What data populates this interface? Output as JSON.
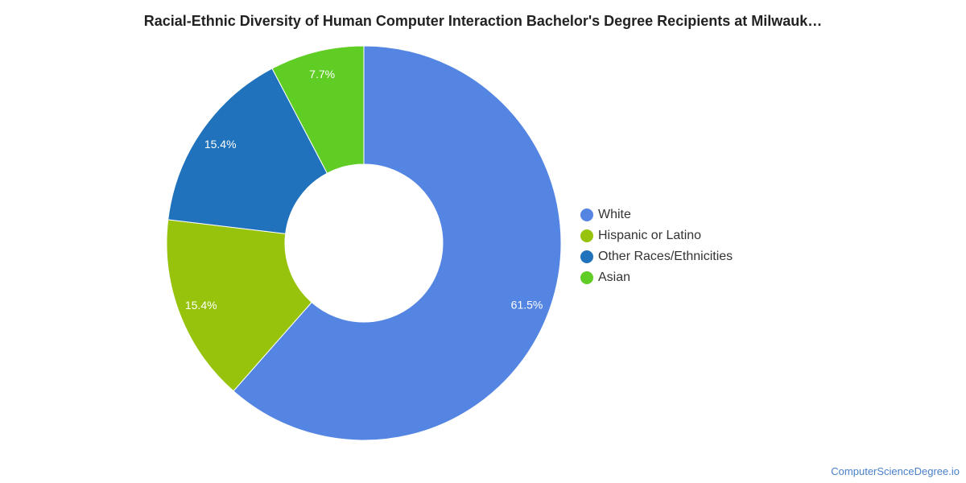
{
  "chart_data": {
    "type": "pie",
    "title": "Racial-Ethnic Diversity of Human Computer Interaction Bachelor's Degree Recipients at Milwauk…",
    "donut": true,
    "legend_position": "right",
    "slices": [
      {
        "name": "White",
        "value": 61.5,
        "label": "61.5%",
        "color": "#5485e2"
      },
      {
        "name": "Hispanic or Latino",
        "value": 15.4,
        "label": "15.4%",
        "color": "#97c30d"
      },
      {
        "name": "Other Races/Ethnicities",
        "value": 15.4,
        "label": "15.4%",
        "color": "#1f72bb"
      },
      {
        "name": "Asian",
        "value": 7.7,
        "label": "7.7%",
        "color": "#60cd25"
      }
    ]
  },
  "watermark": "ComputerScienceDegree.io"
}
